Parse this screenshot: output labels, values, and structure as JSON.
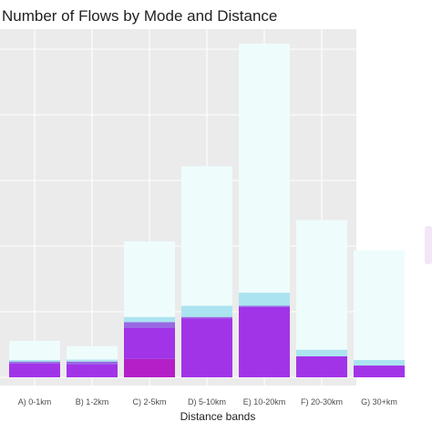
{
  "chart_data": {
    "type": "bar",
    "stacked": true,
    "title": "Number of Flows by Mode and Distance",
    "xlabel": "Distance bands",
    "ylabel": "",
    "categories": [
      "A) 0-1km",
      "B) 1-2km",
      "C) 2-5km",
      "D) 5-10km",
      "E) 10-20km",
      "F) 20-30km",
      "G) 30+km"
    ],
    "ylim": [
      0,
      100
    ],
    "grid": true,
    "series": [
      {
        "color": "#b41fc8",
        "values": [
          0,
          0,
          5.6,
          0,
          0,
          0,
          0
        ]
      },
      {
        "color": "#a234e8",
        "values": [
          4.2,
          4.0,
          9.4,
          18.0,
          21.4,
          6.4,
          3.6
        ]
      },
      {
        "color": "#9868e3",
        "values": [
          0.6,
          0.8,
          1.8,
          0.4,
          0.4,
          0,
          0
        ]
      },
      {
        "color": "#abe4f0",
        "values": [
          0.5,
          0.6,
          1.6,
          3.4,
          4.0,
          2.0,
          1.7
        ]
      },
      {
        "color": "#eefcfc",
        "values": [
          5.8,
          4.1,
          23.0,
          42.5,
          75.9,
          39.5,
          33.4
        ]
      }
    ]
  }
}
